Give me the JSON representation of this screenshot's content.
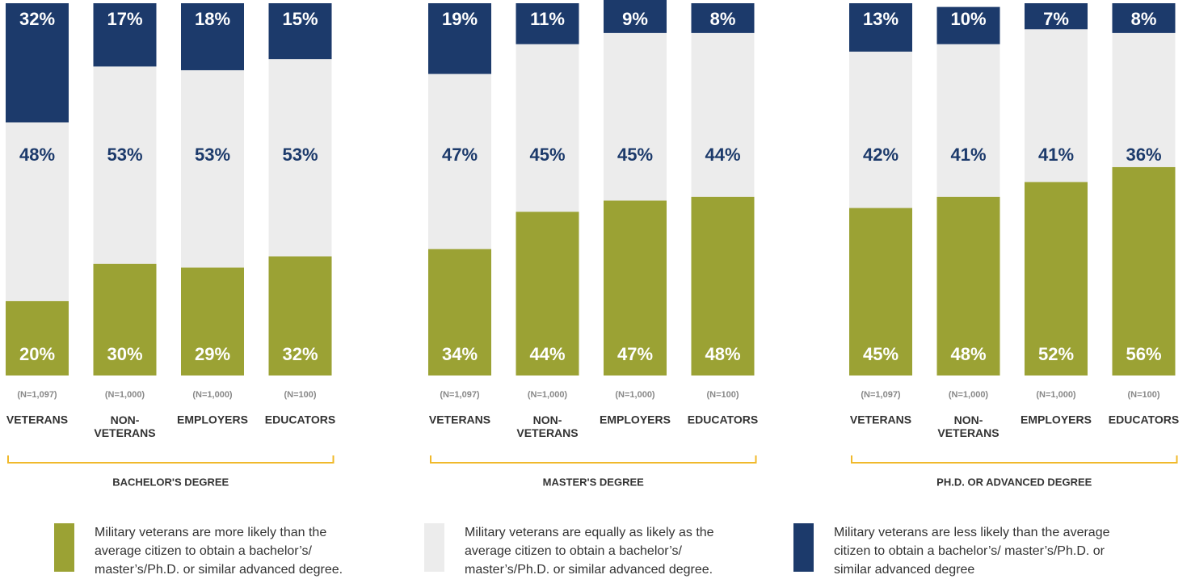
{
  "chart_data": {
    "type": "stacked_bar",
    "groups": [
      {
        "name": "BACHELOR'S DEGREE",
        "categories": [
          "VETERANS",
          "NON-VETERANS",
          "EMPLOYERS",
          "EDUCATORS"
        ],
        "sample_sizes": [
          "(N=1,097)",
          "(N=1,000)",
          "(N=1,000)",
          "(N=100)"
        ]
      },
      {
        "name": "MASTER'S DEGREE",
        "categories": [
          "VETERANS",
          "NON-VETERANS",
          "EMPLOYERS",
          "EDUCATORS"
        ],
        "sample_sizes": [
          "(N=1,097)",
          "(N=1,000)",
          "(N=1,000)",
          "(N=100)"
        ]
      },
      {
        "name": "PH.D. OR ADVANCED DEGREE",
        "categories": [
          "VETERANS",
          "NON-VETERANS",
          "EMPLOYERS",
          "EDUCATORS"
        ],
        "sample_sizes": [
          "(N=1,097)",
          "(N=1,000)",
          "(N=1,000)",
          "(N=100)"
        ]
      }
    ],
    "series": [
      {
        "name": "Military veterans are more likely than the average citizen to obtain a bachelor’s/ master’s/Ph.D. or similar advanced degree.",
        "color": "#9ba234",
        "label_color": "#ffffff",
        "values": [
          [
            20,
            30,
            29,
            32
          ],
          [
            34,
            44,
            47,
            48
          ],
          [
            45,
            48,
            52,
            56
          ]
        ],
        "value_labels": [
          [
            "20%",
            "30%",
            "29%",
            "32%"
          ],
          [
            "34%",
            "44%",
            "47%",
            "48%"
          ],
          [
            "45%",
            "48%",
            "52%",
            "56%"
          ]
        ]
      },
      {
        "name": "Military veterans are equally as likely as the average citizen to obtain a bachelor’s/ master’s/Ph.D. or similar advanced degree.",
        "color": "#ececec",
        "label_color": "#1c3a6b",
        "values": [
          [
            48,
            53,
            53,
            53
          ],
          [
            47,
            45,
            45,
            44
          ],
          [
            42,
            41,
            41,
            36
          ]
        ],
        "value_labels": [
          [
            "48%",
            "53%",
            "53%",
            "53%"
          ],
          [
            "47%",
            "45%",
            "45%",
            "44%"
          ],
          [
            "42%",
            "41%",
            "41%",
            "36%"
          ]
        ]
      },
      {
        "name": "Military veterans are less likely than the average citizen to obtain a bachelor’s/ master’s/Ph.D. or similar advanced degree",
        "color": "#1c3a6b",
        "label_color": "#ffffff",
        "values": [
          [
            32,
            17,
            18,
            15
          ],
          [
            19,
            11,
            9,
            8
          ],
          [
            13,
            10,
            7,
            8
          ]
        ],
        "value_labels": [
          [
            "32%",
            "17%",
            "18%",
            "15%"
          ],
          [
            "19%",
            "11%",
            "9%",
            "8%"
          ],
          [
            "13%",
            "10%",
            "7%",
            "8%"
          ]
        ]
      }
    ]
  }
}
